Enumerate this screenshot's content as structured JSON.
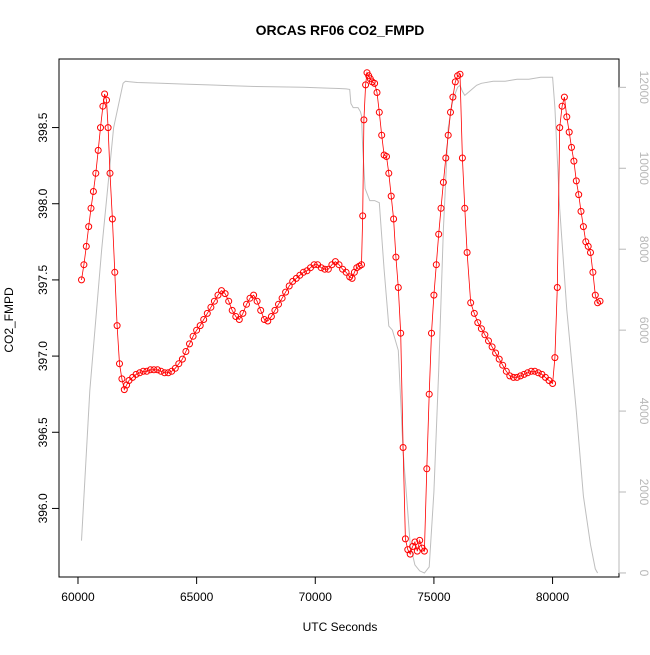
{
  "chart_data": {
    "type": "line",
    "title": "ORCAS RF06 CO2_FMPD",
    "xlabel": "UTC Seconds",
    "ylabel": "CO2_FMPD",
    "xlim": [
      59200,
      82800
    ],
    "ylim": [
      395.55,
      398.95
    ],
    "y2lim": [
      -100,
      12700
    ],
    "x_ticks": [
      60000,
      65000,
      70000,
      75000,
      80000
    ],
    "y_ticks": [
      396.0,
      396.5,
      397.0,
      397.5,
      398.0,
      398.5
    ],
    "y_tick_labels": [
      "396.0",
      "396.5",
      "397.0",
      "397.5",
      "398.0",
      "398.5"
    ],
    "y2_ticks": [
      0,
      2000,
      4000,
      6000,
      8000,
      10000,
      12000
    ],
    "grid": false,
    "legend": "none",
    "colors": {
      "co2": "#ff0000",
      "altitude": "#bebebe",
      "axis": "#000000",
      "right_axis": "#b8b8b8"
    },
    "series": [
      {
        "role": "CO2_FMPD",
        "axis": "left",
        "style": "line-with-circles",
        "x": [
          60150,
          60250,
          60350,
          60450,
          60550,
          60650,
          60750,
          60850,
          60950,
          61050,
          61120,
          61200,
          61270,
          61350,
          61450,
          61550,
          61650,
          61750,
          61850,
          61950,
          62050,
          62150,
          62300,
          62450,
          62600,
          62750,
          62900,
          63050,
          63200,
          63350,
          63500,
          63650,
          63800,
          63950,
          64100,
          64250,
          64400,
          64550,
          64700,
          64850,
          65000,
          65150,
          65300,
          65450,
          65600,
          65750,
          65900,
          66050,
          66200,
          66350,
          66500,
          66650,
          66800,
          66950,
          67100,
          67250,
          67400,
          67550,
          67700,
          67850,
          68000,
          68150,
          68300,
          68450,
          68600,
          68750,
          68900,
          69050,
          69200,
          69350,
          69500,
          69650,
          69800,
          69950,
          70100,
          70250,
          70400,
          70550,
          70700,
          70850,
          71000,
          71150,
          71300,
          71450,
          71550,
          71650,
          71750,
          71850,
          71950,
          72000,
          72050,
          72120,
          72180,
          72250,
          72320,
          72400,
          72500,
          72600,
          72700,
          72800,
          72900,
          73000,
          73100,
          73200,
          73300,
          73400,
          73500,
          73600,
          73700,
          73800,
          73900,
          74000,
          74100,
          74200,
          74300,
          74400,
          74500,
          74600,
          74700,
          74800,
          74900,
          75000,
          75100,
          75200,
          75300,
          75400,
          75500,
          75600,
          75700,
          75800,
          75900,
          76000,
          76100,
          76200,
          76300,
          76400,
          76550,
          76700,
          76850,
          77000,
          77150,
          77300,
          77450,
          77600,
          77750,
          77900,
          78050,
          78200,
          78350,
          78500,
          78650,
          78800,
          78950,
          79100,
          79250,
          79400,
          79550,
          79700,
          79850,
          80000,
          80100,
          80200,
          80300,
          80400,
          80500,
          80600,
          80700,
          80800,
          80900,
          81000,
          81100,
          81200,
          81300,
          81400,
          81500,
          81600,
          81700,
          81800,
          81900,
          82000
        ],
        "y": [
          397.5,
          397.6,
          397.72,
          397.85,
          397.97,
          398.08,
          398.2,
          398.35,
          398.5,
          398.64,
          398.72,
          398.68,
          398.5,
          398.2,
          397.9,
          397.55,
          397.2,
          396.95,
          396.85,
          396.78,
          396.81,
          396.84,
          396.86,
          396.88,
          396.89,
          396.9,
          396.9,
          396.91,
          396.91,
          396.91,
          396.9,
          396.89,
          396.89,
          396.9,
          396.92,
          396.95,
          396.98,
          397.03,
          397.08,
          397.13,
          397.17,
          397.2,
          397.24,
          397.28,
          397.32,
          397.36,
          397.4,
          397.43,
          397.41,
          397.36,
          397.3,
          397.26,
          397.24,
          397.28,
          397.34,
          397.38,
          397.4,
          397.36,
          397.3,
          397.24,
          397.23,
          397.26,
          397.3,
          397.34,
          397.38,
          397.42,
          397.46,
          397.49,
          397.51,
          397.53,
          397.55,
          397.56,
          397.58,
          397.6,
          397.6,
          397.58,
          397.57,
          397.57,
          397.6,
          397.62,
          397.6,
          397.57,
          397.55,
          397.52,
          397.51,
          397.55,
          397.58,
          397.59,
          397.6,
          397.92,
          398.55,
          398.78,
          398.86,
          398.84,
          398.82,
          398.8,
          398.79,
          398.73,
          398.6,
          398.45,
          398.32,
          398.31,
          398.2,
          398.05,
          397.9,
          397.65,
          397.45,
          397.15,
          396.4,
          395.8,
          395.73,
          395.7,
          395.75,
          395.78,
          395.72,
          395.79,
          395.74,
          395.72,
          396.26,
          396.75,
          397.15,
          397.4,
          397.6,
          397.8,
          397.97,
          398.14,
          398.3,
          398.45,
          398.6,
          398.7,
          398.8,
          398.84,
          398.85,
          398.3,
          397.97,
          397.68,
          397.35,
          397.28,
          397.22,
          397.18,
          397.14,
          397.1,
          397.06,
          397.02,
          396.98,
          396.94,
          396.9,
          396.87,
          396.86,
          396.86,
          396.87,
          396.88,
          396.89,
          396.9,
          396.9,
          396.89,
          396.88,
          396.86,
          396.84,
          396.82,
          396.99,
          397.45,
          398.5,
          398.64,
          398.7,
          398.57,
          398.47,
          398.37,
          398.28,
          398.15,
          398.06,
          397.95,
          397.85,
          397.75,
          397.72,
          397.68,
          397.55,
          397.4,
          397.35,
          397.36
        ]
      },
      {
        "role": "altitude",
        "axis": "right",
        "style": "line",
        "x": [
          60150,
          60500,
          61000,
          61500,
          61900,
          62000,
          62500,
          63500,
          64500,
          65500,
          66500,
          67500,
          68500,
          69500,
          70500,
          71000,
          71300,
          71450,
          71500,
          71600,
          71800,
          71900,
          71950,
          72000,
          72100,
          72300,
          72500,
          72700,
          72900,
          73100,
          73250,
          73500,
          73700,
          73900,
          74000,
          74200,
          74400,
          74600,
          74800,
          75000,
          75200,
          75400,
          75600,
          75800,
          76000,
          76100,
          76200,
          76300,
          76500,
          76700,
          76800,
          77000,
          77500,
          78000,
          78500,
          79000,
          79500,
          80000,
          80100,
          80300,
          80600,
          81000,
          81300,
          81600,
          81800,
          81900
        ],
        "y": [
          800,
          4500,
          8000,
          11000,
          12100,
          12150,
          12120,
          12100,
          12080,
          12060,
          12040,
          12020,
          12010,
          12000,
          11980,
          11970,
          11960,
          11950,
          11600,
          11500,
          11500,
          11400,
          11300,
          10500,
          9500,
          9200,
          9200,
          9150,
          7500,
          6100,
          6000,
          5500,
          3000,
          1500,
          700,
          200,
          50,
          0,
          150,
          2000,
          5000,
          8500,
          11000,
          11700,
          12000,
          12050,
          11900,
          11800,
          11900,
          12000,
          12050,
          12100,
          12150,
          12150,
          12200,
          12200,
          12250,
          12250,
          11500,
          9000,
          6500,
          4000,
          1900,
          700,
          100,
          0
        ]
      }
    ]
  }
}
